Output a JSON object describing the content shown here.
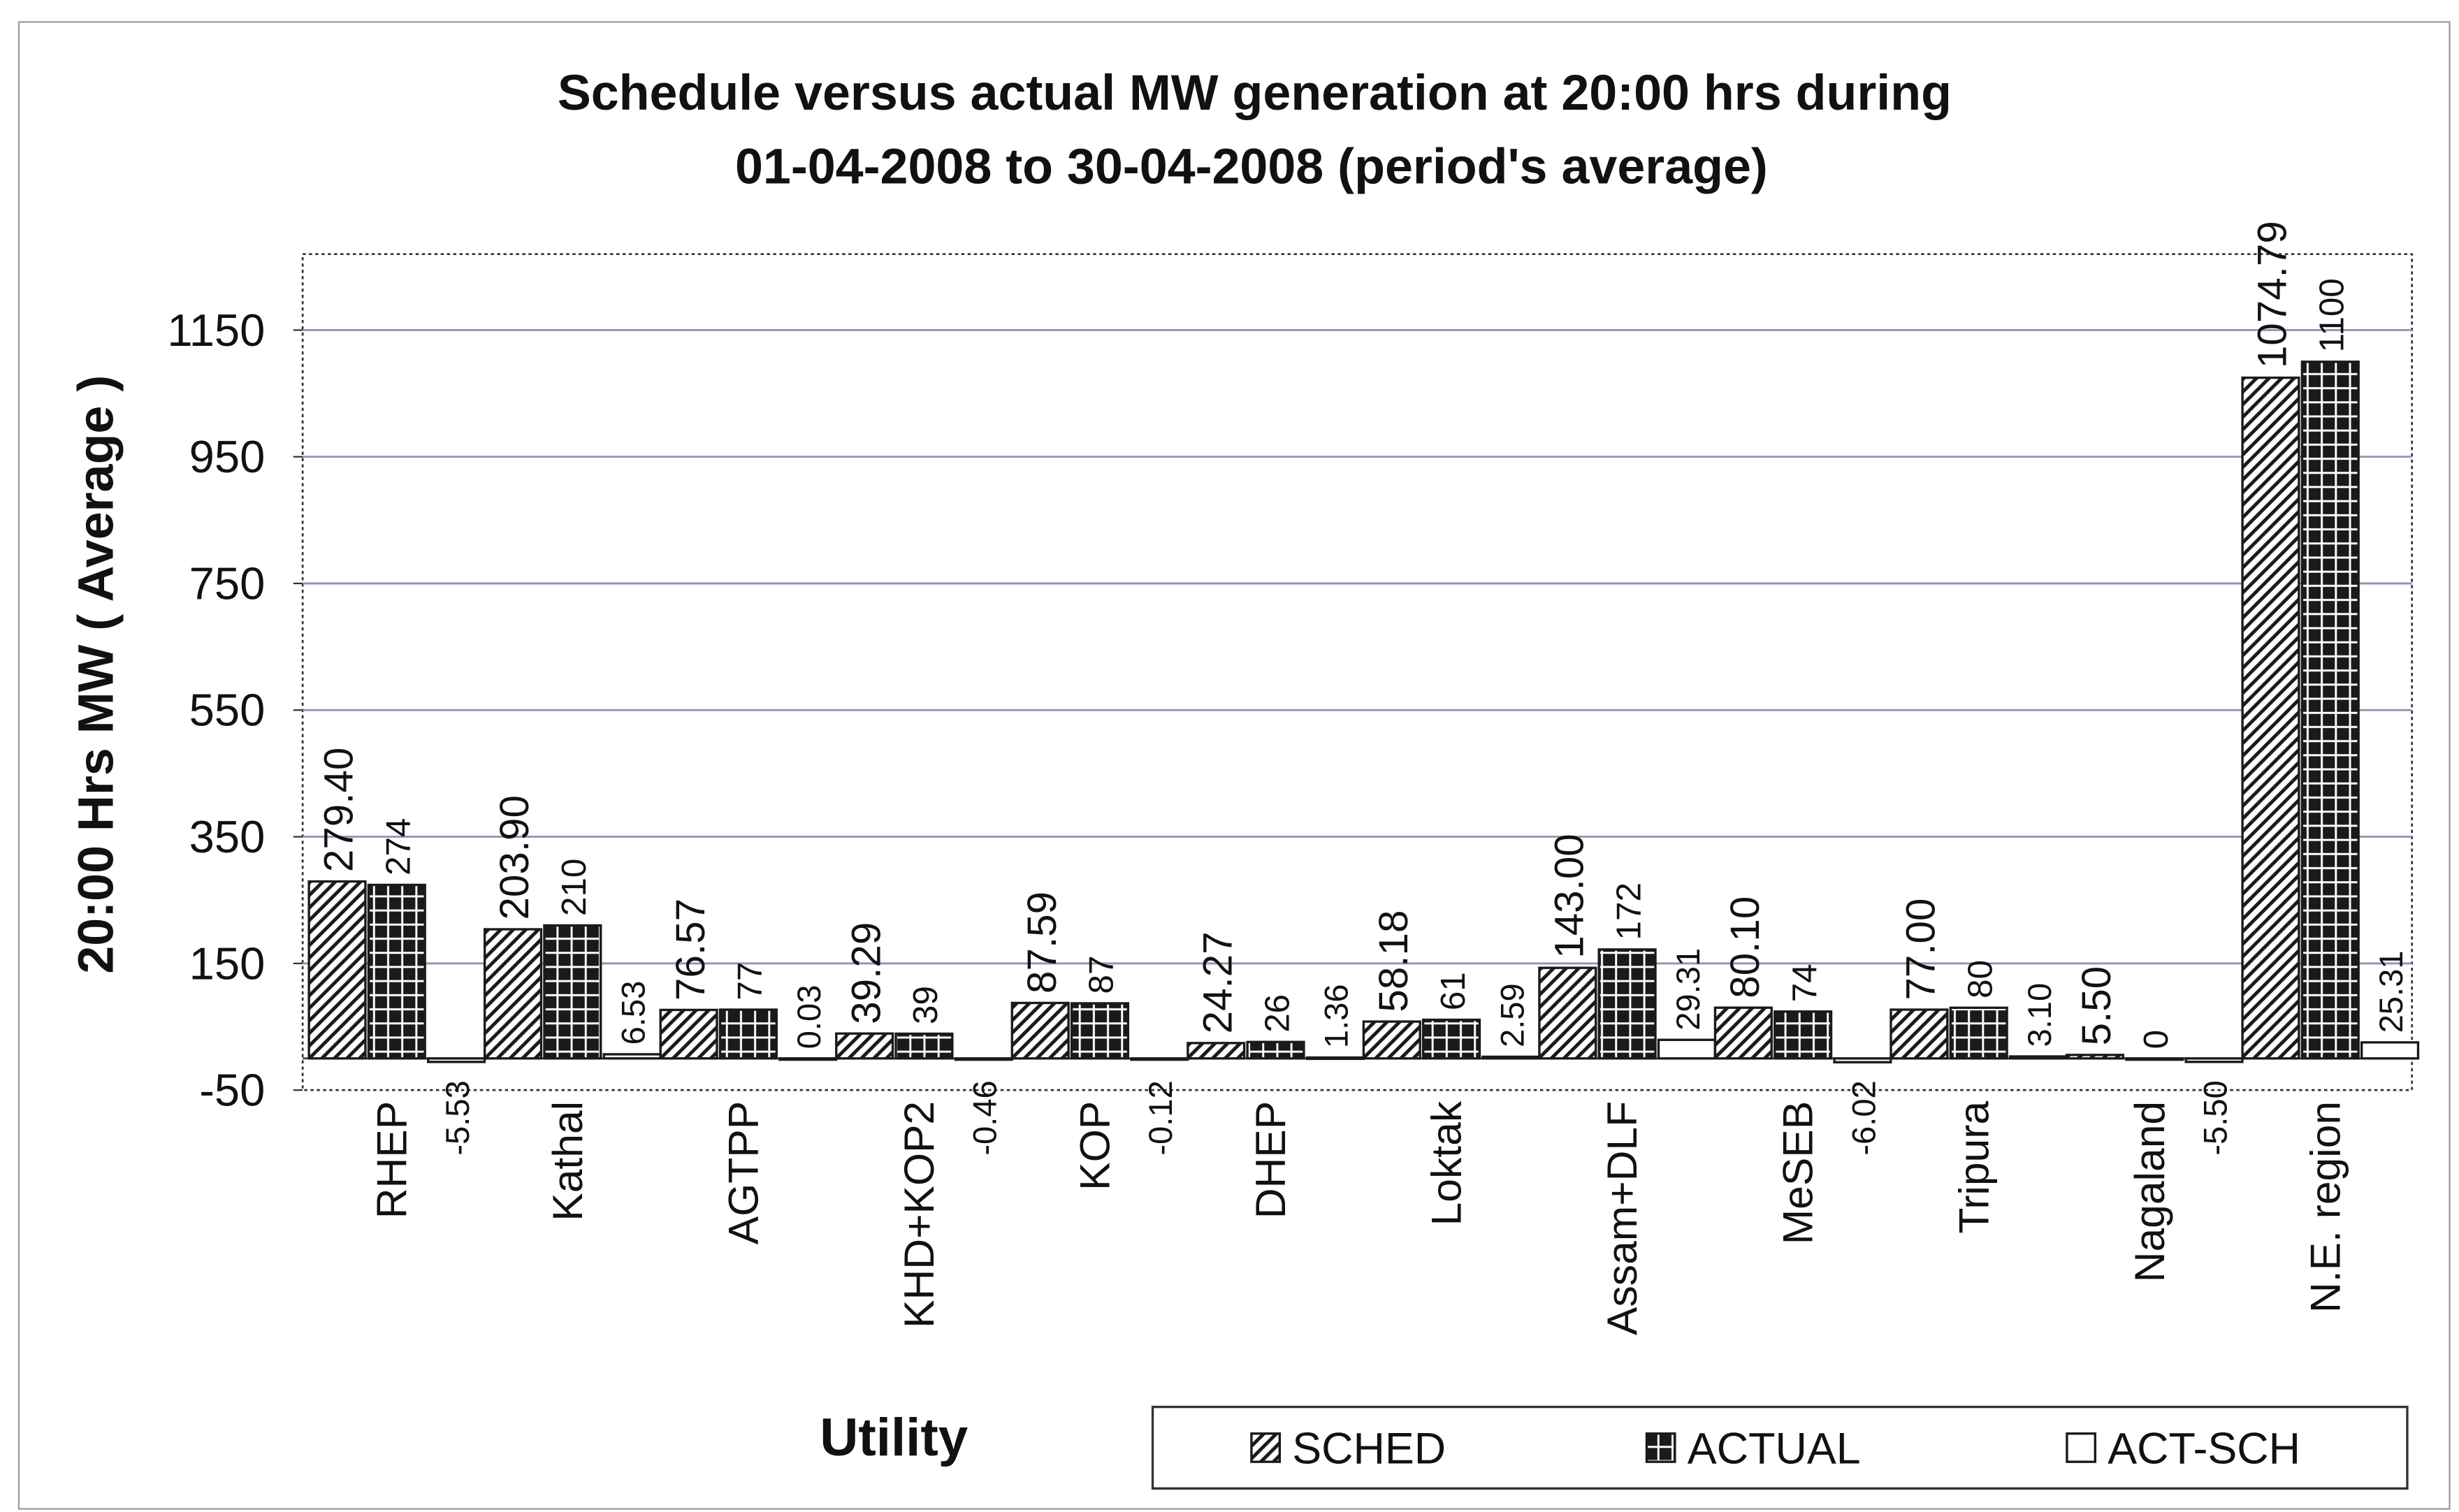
{
  "chart_data": {
    "type": "bar",
    "title": [
      "Schedule versus actual MW generation at 20:00 hrs during",
      "01-04-2008 to 30-04-2008 (period's average)"
    ],
    "x_label": "Utility",
    "y_label": "20:00 Hrs MW ( Average )",
    "categories": [
      "RHEP",
      "Kathal",
      "AGTPP",
      "KHD+KOP2",
      "KOP",
      "DHEP",
      "Loktak",
      "Assam+DLF",
      "MeSEB",
      "Tripura",
      "Nagaland",
      "N.E. region"
    ],
    "series": [
      {
        "name": "SCHED",
        "color": "#1a1a1a",
        "pattern": "hatch",
        "values": [
          279.4,
          203.9,
          76.57,
          39.29,
          87.59,
          24.27,
          58.18,
          143,
          80.1,
          77,
          5.5,
          1074.79
        ],
        "value_labels": [
          "279.40",
          "203.90",
          "76.57",
          "39.29",
          "87.59",
          "24.27",
          "58.18",
          "143.00",
          "80.10",
          "77.00",
          "5.50",
          "1074.79"
        ]
      },
      {
        "name": "ACTUAL",
        "color": "#1a1a1a",
        "pattern": "grid",
        "values": [
          274,
          210,
          77,
          39,
          87,
          26,
          61,
          172,
          74,
          80,
          0,
          1100
        ]
      },
      {
        "name": "ACT-SCH",
        "color": "#ffffff",
        "pattern": "solid",
        "values": [
          -5.53,
          6.53,
          0.03,
          -0.46,
          -0.12,
          1.36,
          2.59,
          29.31,
          -6.02,
          3.1,
          -5.5,
          25.31
        ],
        "value_labels": [
          "-5.53",
          "6.53",
          "0.03",
          "-0.46",
          "-0.12",
          "1.36",
          "2.59",
          "29.31",
          "-6.02",
          "3.10",
          "-5.50",
          "25.31"
        ]
      }
    ],
    "ylim": [
      -50,
      1270
    ],
    "yticks": [
      -50,
      150,
      350,
      550,
      750,
      950,
      1150
    ],
    "grid": true,
    "grid_color": "#9a90b8",
    "legend": "bottom"
  }
}
